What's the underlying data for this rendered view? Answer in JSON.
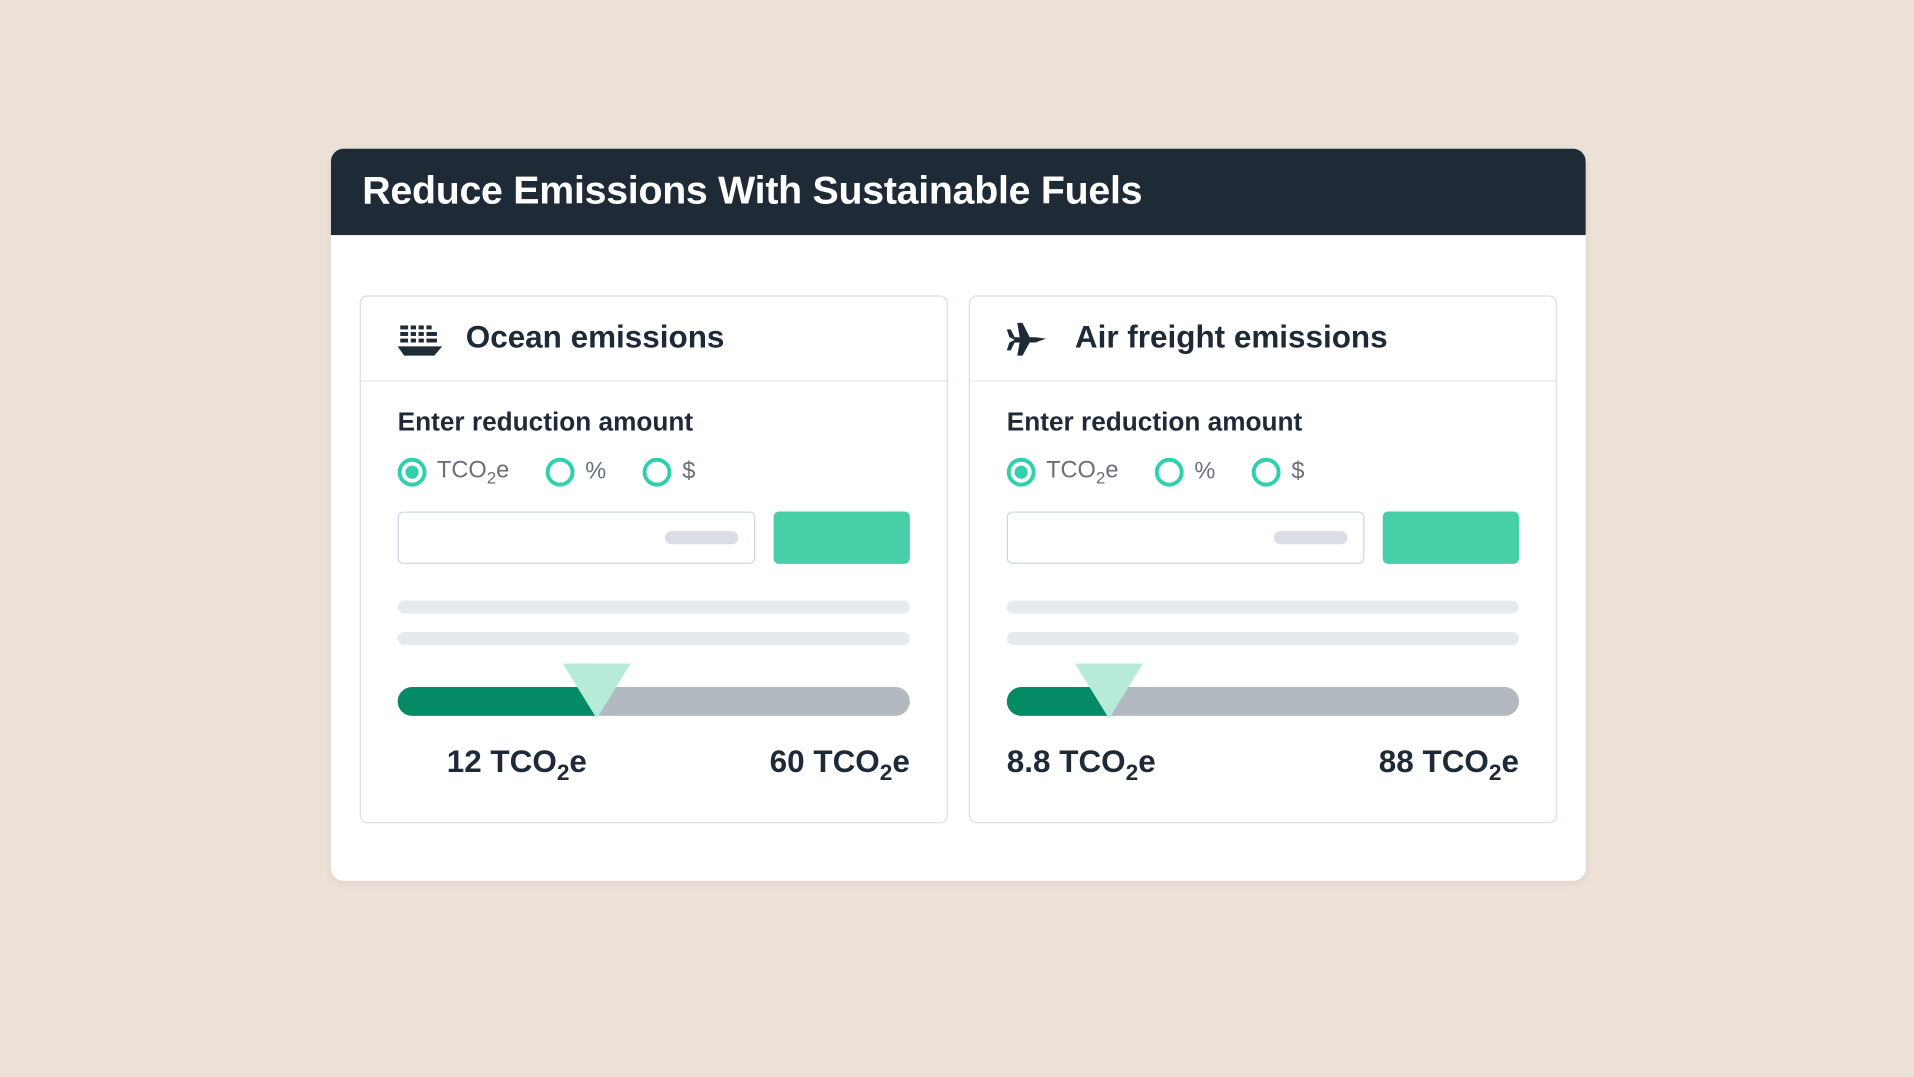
{
  "colors": {
    "page_bg": "#ece1d6",
    "panel_bg": "#ffffff",
    "header_bg": "#1f2a37",
    "header_text": "#ffffff",
    "card_border": "#d8e0e8",
    "text_primary": "#1f2a37",
    "text_muted": "#69707b",
    "accent": "#2fd0ab",
    "button_bg": "#47cfa8",
    "slider_track": "#b2b9c1",
    "slider_fill": "#048a65",
    "slider_thumb": "#b7ebd7",
    "skeleton": "#e6eaee",
    "input_border": "#cfd8e1"
  },
  "header": {
    "title": "Reduce Emissions With Sustainable Fuels"
  },
  "unit_labels": {
    "tco2e_html": "TCO<span class=\"sub2\">2</span>e",
    "percent": "%",
    "dollar": "$"
  },
  "cards": {
    "ocean": {
      "icon": "ship-icon",
      "title": "Ocean emissions",
      "prompt": "Enter reduction amount",
      "selected_option": "tco2e",
      "slider": {
        "fill_percent": 39,
        "thumb_percent": 39,
        "current_value": 12,
        "max_value": 60,
        "unit_html": "TCO<span class=\"sub2\">2</span>e"
      }
    },
    "air": {
      "icon": "plane-icon",
      "title": "Air freight emissions",
      "prompt": "Enter reduction amount",
      "selected_option": "tco2e",
      "slider": {
        "fill_percent": 20,
        "thumb_percent": 20,
        "current_value": 8.8,
        "max_value": 88,
        "unit_html": "TCO<span class=\"sub2\">2</span>e"
      }
    }
  }
}
